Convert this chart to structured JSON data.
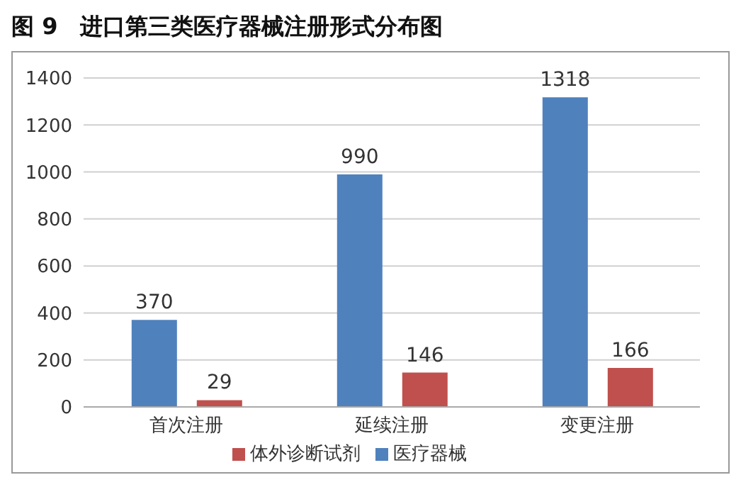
{
  "chart_data": {
    "type": "bar",
    "title": "图 9　进口第三类医疗器械注册形式分布图",
    "categories": [
      "首次注册",
      "延续注册",
      "变更注册"
    ],
    "series": [
      {
        "name": "医疗器械",
        "color": "#4f81bd",
        "values": [
          370,
          990,
          1318
        ]
      },
      {
        "name": "体外诊断试剂",
        "color": "#c0504d",
        "values": [
          29,
          146,
          166
        ]
      }
    ],
    "ylim": [
      0,
      1400
    ],
    "yticks": [
      0,
      200,
      400,
      600,
      800,
      1000,
      1200,
      1400
    ],
    "grid": "y",
    "legend": "bottom",
    "data_labels": true
  }
}
